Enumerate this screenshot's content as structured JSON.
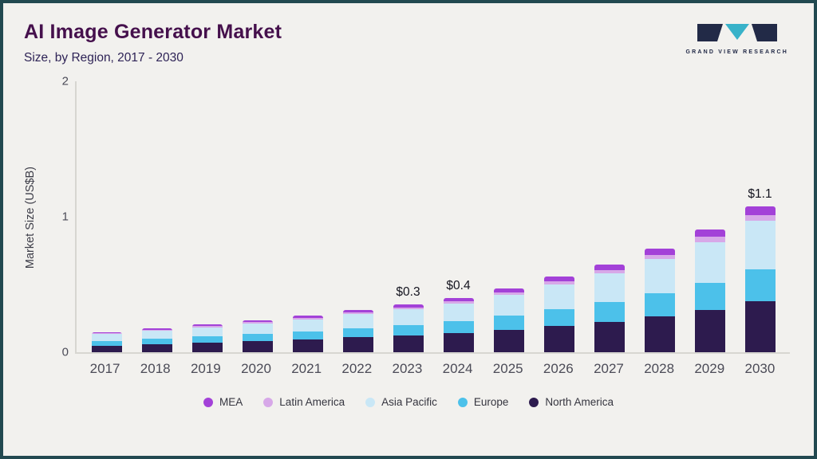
{
  "header": {
    "title": "AI Image Generator Market",
    "subtitle": "Size, by Region, 2017 - 2030"
  },
  "logo": {
    "text": "GRAND VIEW RESEARCH"
  },
  "chart_data": {
    "type": "bar",
    "stacked": true,
    "title": "AI Image Generator Market Size, by Region, 2017 - 2030",
    "ylabel": "Market Size (US$B)",
    "ylim": [
      0,
      2
    ],
    "yticks": [
      0,
      1,
      2
    ],
    "grid": false,
    "legend_position": "bottom",
    "categories": [
      "2017",
      "2018",
      "2019",
      "2020",
      "2021",
      "2022",
      "2023",
      "2024",
      "2025",
      "2026",
      "2027",
      "2028",
      "2029",
      "2030"
    ],
    "series": [
      {
        "name": "North America",
        "color": "#2d1b4e",
        "values": [
          0.05,
          0.06,
          0.07,
          0.08,
          0.095,
          0.11,
          0.125,
          0.14,
          0.165,
          0.195,
          0.225,
          0.265,
          0.315,
          0.375
        ]
      },
      {
        "name": "Europe",
        "color": "#4cc1ea",
        "values": [
          0.033,
          0.04,
          0.046,
          0.053,
          0.059,
          0.068,
          0.077,
          0.088,
          0.103,
          0.123,
          0.143,
          0.169,
          0.2,
          0.238
        ]
      },
      {
        "name": "Asia Pacific",
        "color": "#c9e7f6",
        "values": [
          0.05,
          0.059,
          0.069,
          0.079,
          0.089,
          0.102,
          0.116,
          0.132,
          0.155,
          0.185,
          0.215,
          0.254,
          0.3,
          0.356
        ]
      },
      {
        "name": "Latin America",
        "color": "#d7a8e8",
        "values": [
          0.006,
          0.007,
          0.008,
          0.01,
          0.011,
          0.012,
          0.014,
          0.016,
          0.019,
          0.022,
          0.026,
          0.031,
          0.036,
          0.043
        ]
      },
      {
        "name": "MEA",
        "color": "#a341d8",
        "values": [
          0.009,
          0.011,
          0.013,
          0.014,
          0.016,
          0.019,
          0.021,
          0.024,
          0.028,
          0.034,
          0.039,
          0.046,
          0.055,
          0.065
        ]
      }
    ],
    "annotations": [
      {
        "category": "2023",
        "label": "$0.3"
      },
      {
        "category": "2024",
        "label": "$0.4"
      },
      {
        "category": "2030",
        "label": "$1.1"
      }
    ],
    "legend_order": [
      "MEA",
      "Latin America",
      "Asia Pacific",
      "Europe",
      "North America"
    ]
  }
}
